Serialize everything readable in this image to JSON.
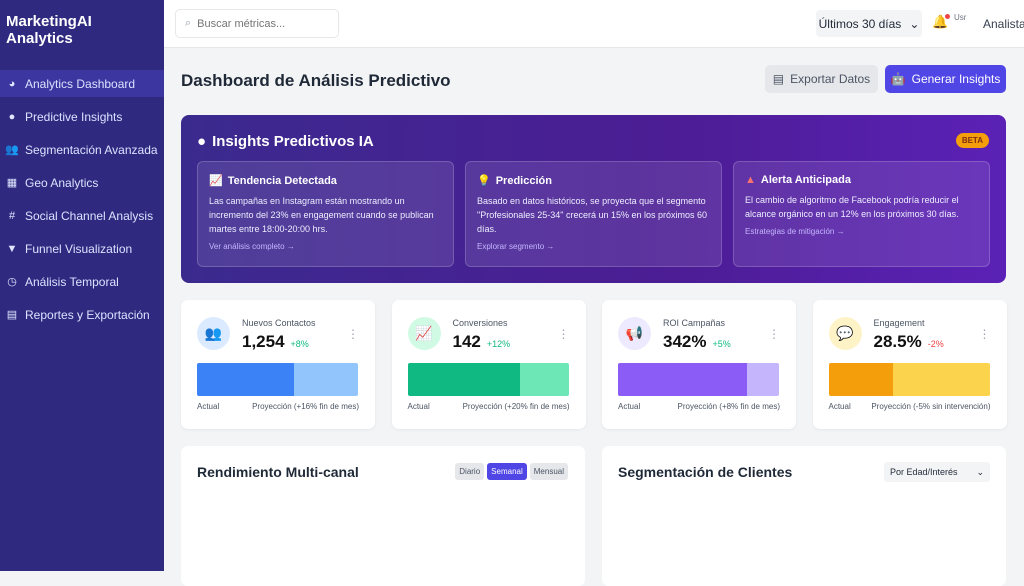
{
  "sidebar": {
    "brand": "MarketingAI Analytics",
    "items": [
      {
        "label": "Analytics Dashboard",
        "icon": "◕"
      },
      {
        "label": "Predictive Insights",
        "icon": "●"
      },
      {
        "label": "Segmentación Avanzada",
        "icon": "👥"
      },
      {
        "label": "Geo Analytics",
        "icon": "▦"
      },
      {
        "label": "Social Channel Analysis",
        "icon": "#"
      },
      {
        "label": "Funnel Visualization",
        "icon": "▼"
      },
      {
        "label": "Análisis Temporal",
        "icon": "◷"
      },
      {
        "label": "Reportes y Exportación",
        "icon": "▤"
      }
    ]
  },
  "header": {
    "search_placeholder": "Buscar métricas...",
    "range": "Últimos 30 días",
    "avatar_alt": "Usr",
    "user": "Analista"
  },
  "page": {
    "title": "Dashboard de Análisis Predictivo",
    "export": "Exportar Datos",
    "generate": "Generar Insights"
  },
  "insights": {
    "title": "Insights Predictivos IA",
    "badge": "BETA",
    "cards": [
      {
        "title": "Tendencia Detectada",
        "icon": "📈",
        "icon_color": "#34d399",
        "text": "Las campañas en Instagram están mostrando un incremento del 23% en engagement cuando se publican martes entre 18:00-20:00 hrs.",
        "link": "Ver análisis completo →"
      },
      {
        "title": "Predicción",
        "icon": "💡",
        "icon_color": "#fbbf24",
        "text": "Basado en datos históricos, se proyecta que el segmento \"Profesionales 25-34\" crecerá un 15% en los próximos 60 días.",
        "link": "Explorar segmento →"
      },
      {
        "title": "Alerta Anticipada",
        "icon": "▲",
        "icon_color": "#f87171",
        "text": "El cambio de algoritmo de Facebook podría reducir el alcance orgánico en un 12% en los próximos 30 días.",
        "link": "Estrategias de mitigación →"
      }
    ]
  },
  "stats": [
    {
      "label": "Nuevos Contactos",
      "value": "1,254",
      "change": "+8%",
      "positive": true,
      "icon": "👥",
      "actual_fraction": 0.6,
      "c1": "#3b82f6",
      "c2": "#93c5fd",
      "circle": "#dbeafe",
      "actual": "Actual",
      "projection": "Proyección (+16% fin de mes)"
    },
    {
      "label": "Conversiones",
      "value": "142",
      "change": "+12%",
      "positive": true,
      "icon": "📈",
      "actual_fraction": 0.7,
      "c1": "#10b981",
      "c2": "#6ee7b7",
      "circle": "#d1fae5",
      "actual": "Actual",
      "projection": "Proyección (+20% fin de mes)"
    },
    {
      "label": "ROI Campañas",
      "value": "342%",
      "change": "+5%",
      "positive": true,
      "icon": "📢",
      "actual_fraction": 0.8,
      "c1": "#8b5cf6",
      "c2": "#c4b5fd",
      "circle": "#ede9fe",
      "actual": "Actual",
      "projection": "Proyección (+8% fin de mes)"
    },
    {
      "label": "Engagement",
      "value": "28.5%",
      "change": "-2%",
      "positive": false,
      "icon": "💬",
      "actual_fraction": 0.4,
      "c1": "#f59e0b",
      "c2": "#fcd34d",
      "circle": "#fef3c7",
      "actual": "Actual",
      "projection": "Proyección (-5% sin intervención)"
    }
  ],
  "panels": {
    "multichannel": {
      "title": "Rendimiento Multi-canal",
      "tabs": [
        "Diario",
        "Semanal",
        "Mensual"
      ],
      "active": "Semanal"
    },
    "segmentation": {
      "title": "Segmentación de Clientes",
      "select": "Por Edad/Interés"
    }
  }
}
